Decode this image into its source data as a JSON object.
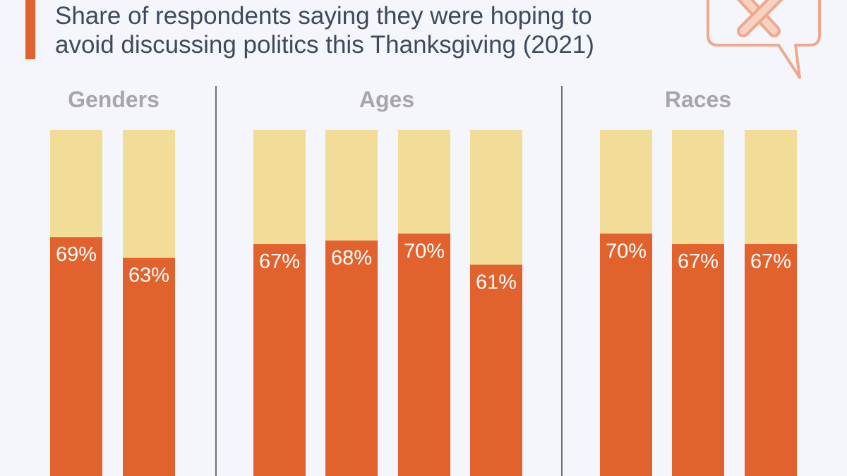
{
  "title": {
    "line1": "Share of respondents saying they were hoping to",
    "line2": "avoid discussing politics this Thanksgiving (2021)"
  },
  "icons": {
    "header_icon": "speech-bubble-x-icon"
  },
  "colors": {
    "background": "#f4f6fb",
    "accent": "#e2622e",
    "bar_fill": "#e2622e",
    "bar_remainder": "#f1dd97",
    "divider": "#444444",
    "group_label": "#a9a6ab",
    "icon_stroke": "#f0a88c"
  },
  "chart_data": {
    "type": "bar",
    "stacked_to": 100,
    "ylim": [
      0,
      100
    ],
    "groups": [
      {
        "label": "Genders",
        "values": [
          69,
          63
        ],
        "value_labels": [
          "69%",
          "63%"
        ]
      },
      {
        "label": "Ages",
        "values": [
          67,
          68,
          70,
          61
        ],
        "value_labels": [
          "67%",
          "68%",
          "70%",
          "61%"
        ]
      },
      {
        "label": "Races",
        "values": [
          70,
          67,
          67
        ],
        "value_labels": [
          "70%",
          "67%",
          "67%"
        ]
      }
    ]
  }
}
